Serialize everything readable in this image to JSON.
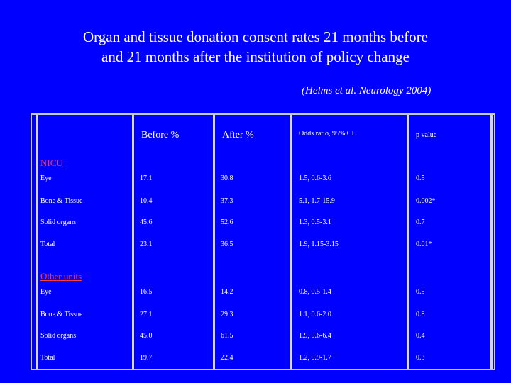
{
  "title_line1": "Organ and tissue donation consent rates 21 months before",
  "title_line2": "and 21 months after the institution of policy change",
  "citation": "(Helms et al. Neurology 2004)",
  "table": {
    "headers": {
      "before": "Before %",
      "after": "After %",
      "odds": "Odds ratio, 95% CI",
      "p": "p value"
    },
    "sections": [
      {
        "name": "NICU",
        "rows": [
          {
            "label": "Eye",
            "before": "17.1",
            "after": "30.8",
            "odds": "1.5, 0.6-3.6",
            "p": "0.5"
          },
          {
            "label": "Bone & Tissue",
            "before": "10.4",
            "after": "37.3",
            "odds": "5.1, 1.7-15.9",
            "p": "0.002*"
          },
          {
            "label": "Solid organs",
            "before": "45.6",
            "after": "52.6",
            "odds": "1.3, 0.5-3.1",
            "p": "0.7"
          },
          {
            "label": "Total",
            "before": "23.1",
            "after": "36.5",
            "odds": "1.9, 1.15-3.15",
            "p": "0.01*"
          }
        ]
      },
      {
        "name": "Other units",
        "rows": [
          {
            "label": "Eye",
            "before": "16.5",
            "after": "14.2",
            "odds": "0.8, 0.5-1.4",
            "p": "0.5"
          },
          {
            "label": "Bone & Tissue",
            "before": "27.1",
            "after": "29.3",
            "odds": "1.1, 0.6-2.0",
            "p": "0.8"
          },
          {
            "label": "Solid organs",
            "before": "45.0",
            "after": "61.5",
            "odds": "1.9, 0.6-6.4",
            "p": "0.4"
          },
          {
            "label": "Total",
            "before": "19.7",
            "after": "22.4",
            "odds": "1.2, 0.9-1.7",
            "p": "0.3"
          }
        ]
      }
    ]
  }
}
